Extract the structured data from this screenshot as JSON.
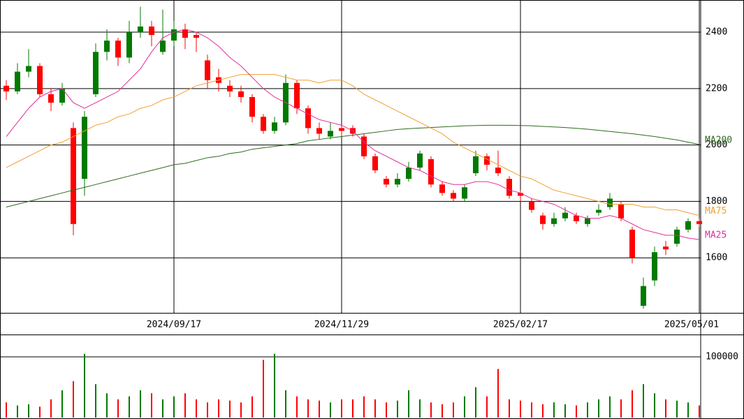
{
  "chart_data": [
    {
      "type": "candlestick",
      "categories": [
        null,
        null,
        null,
        null,
        null,
        null,
        null,
        null,
        null,
        null,
        null,
        null,
        null,
        null,
        null,
        "2024/09/17",
        null,
        null,
        null,
        null,
        null,
        null,
        null,
        null,
        null,
        null,
        null,
        null,
        null,
        null,
        "2024/11/29",
        null,
        null,
        null,
        null,
        null,
        null,
        null,
        null,
        null,
        null,
        null,
        null,
        null,
        null,
        null,
        "2025/02/17",
        null,
        null,
        null,
        null,
        null,
        null,
        null,
        null,
        null,
        null,
        null,
        null,
        null,
        null,
        null,
        "2025/05/01"
      ],
      "open": [
        2210,
        2190,
        2260,
        2280,
        2180,
        2150,
        2060,
        1880,
        2180,
        2330,
        2370,
        2310,
        2400,
        2420,
        2330,
        2370,
        2410,
        2390,
        2300,
        2240,
        2210,
        2190,
        2170,
        2100,
        2050,
        2080,
        2220,
        2130,
        2060,
        2030,
        2060,
        2060,
        2030,
        1960,
        1880,
        1860,
        1880,
        1920,
        1950,
        1860,
        1830,
        1810,
        1900,
        1960,
        1920,
        1880,
        1830,
        1800,
        1750,
        1720,
        1740,
        1750,
        1720,
        1760,
        1780,
        1790,
        1700,
        1430,
        1520,
        1640,
        1650,
        1700,
        1730
      ],
      "high": [
        2230,
        2290,
        2340,
        2290,
        2200,
        2220,
        2080,
        2120,
        2360,
        2410,
        2380,
        2440,
        2490,
        2440,
        2480,
        2440,
        2430,
        2400,
        2320,
        2270,
        2230,
        2210,
        2180,
        2110,
        2100,
        2250,
        2230,
        2140,
        2080,
        2080,
        2070,
        2070,
        2040,
        1970,
        1890,
        1900,
        1940,
        1980,
        1960,
        1870,
        1840,
        1860,
        1980,
        1970,
        1980,
        1890,
        1840,
        1810,
        1760,
        1760,
        1780,
        1760,
        1750,
        1790,
        1830,
        1800,
        1710,
        1530,
        1640,
        1660,
        1710,
        1740,
        1740
      ],
      "low": [
        2160,
        2180,
        2240,
        2170,
        2120,
        2140,
        1680,
        1820,
        2170,
        2300,
        2280,
        2290,
        2380,
        2350,
        2320,
        2350,
        2340,
        2330,
        2200,
        2190,
        2170,
        2150,
        2080,
        2040,
        2040,
        2070,
        2110,
        2040,
        2020,
        2020,
        2030,
        2030,
        1950,
        1900,
        1850,
        1850,
        1870,
        1910,
        1850,
        1820,
        1800,
        1800,
        1890,
        1910,
        1890,
        1810,
        1800,
        1760,
        1700,
        1710,
        1730,
        1720,
        1710,
        1750,
        1770,
        1730,
        1580,
        1420,
        1500,
        1610,
        1640,
        1690,
        1710
      ],
      "close": [
        2190,
        2260,
        2280,
        2180,
        2150,
        2200,
        1720,
        2100,
        2330,
        2370,
        2310,
        2400,
        2420,
        2390,
        2370,
        2410,
        2380,
        2380,
        2230,
        2220,
        2190,
        2170,
        2100,
        2050,
        2080,
        2220,
        2130,
        2060,
        2040,
        2050,
        2050,
        2040,
        1960,
        1910,
        1860,
        1880,
        1920,
        1970,
        1860,
        1830,
        1810,
        1850,
        1960,
        1930,
        1900,
        1820,
        1820,
        1770,
        1720,
        1740,
        1760,
        1730,
        1740,
        1770,
        1810,
        1740,
        1600,
        1500,
        1620,
        1630,
        1700,
        1730,
        1720
      ],
      "up_color": "#007a00",
      "down_color": "#ff0000",
      "series": [
        {
          "name": "MA200",
          "color": "#2e6b1e",
          "values": [
            1780,
            1790,
            1800,
            1810,
            1820,
            1830,
            1840,
            1850,
            1860,
            1870,
            1880,
            1890,
            1900,
            1910,
            1920,
            1930,
            1935,
            1945,
            1955,
            1960,
            1970,
            1975,
            1985,
            1990,
            1995,
            2000,
            2005,
            2015,
            2020,
            2025,
            2030,
            2035,
            2040,
            2045,
            2050,
            2055,
            2058,
            2060,
            2062,
            2064,
            2066,
            2068,
            2069,
            2070,
            2070,
            2070,
            2069,
            2068,
            2066,
            2064,
            2062,
            2059,
            2056,
            2052,
            2048,
            2044,
            2040,
            2035,
            2030,
            2024,
            2018,
            2010,
            2002
          ]
        },
        {
          "name": "MA75",
          "color": "#f0a030",
          "values": [
            1920,
            1940,
            1960,
            1980,
            2000,
            2010,
            2030,
            2050,
            2070,
            2080,
            2100,
            2110,
            2130,
            2140,
            2160,
            2170,
            2190,
            2210,
            2220,
            2230,
            2240,
            2250,
            2250,
            2250,
            2250,
            2240,
            2230,
            2230,
            2220,
            2230,
            2230,
            2210,
            2180,
            2160,
            2140,
            2120,
            2100,
            2080,
            2060,
            2040,
            2010,
            1990,
            1970,
            1950,
            1930,
            1910,
            1890,
            1880,
            1860,
            1840,
            1830,
            1820,
            1810,
            1800,
            1790,
            1790,
            1790,
            1780,
            1780,
            1770,
            1770,
            1760,
            1750
          ]
        },
        {
          "name": "MA25",
          "color": "#e0309a",
          "values": [
            2030,
            2080,
            2130,
            2170,
            2190,
            2200,
            2150,
            2130,
            2150,
            2170,
            2190,
            2230,
            2270,
            2330,
            2380,
            2400,
            2410,
            2400,
            2380,
            2350,
            2310,
            2280,
            2240,
            2200,
            2170,
            2150,
            2130,
            2110,
            2090,
            2080,
            2070,
            2050,
            2010,
            1980,
            1960,
            1940,
            1920,
            1910,
            1890,
            1870,
            1860,
            1860,
            1870,
            1870,
            1860,
            1840,
            1830,
            1810,
            1800,
            1790,
            1770,
            1750,
            1740,
            1740,
            1750,
            1740,
            1720,
            1700,
            1690,
            1680,
            1680,
            1670,
            1665
          ]
        }
      ],
      "ylim": [
        1405,
        2514
      ],
      "yticks": [
        1600,
        1800,
        2000,
        2200,
        2400
      ],
      "grid": true
    },
    {
      "type": "bar",
      "values": [
        25000,
        20000,
        22000,
        18000,
        30000,
        45000,
        60000,
        105000,
        55000,
        40000,
        30000,
        35000,
        45000,
        40000,
        30000,
        35000,
        40000,
        30000,
        25000,
        30000,
        28000,
        25000,
        35000,
        95000,
        105000,
        45000,
        35000,
        30000,
        28000,
        25000,
        30000,
        30000,
        35000,
        30000,
        25000,
        28000,
        45000,
        30000,
        25000,
        22000,
        25000,
        35000,
        50000,
        35000,
        80000,
        30000,
        28000,
        25000,
        22000,
        25000,
        22000,
        20000,
        25000,
        30000,
        35000,
        30000,
        45000,
        55000,
        40000,
        30000,
        28000,
        25000,
        20000
      ],
      "ylim": [
        0,
        135600
      ],
      "yticks": [
        100000
      ],
      "grid": true
    }
  ]
}
